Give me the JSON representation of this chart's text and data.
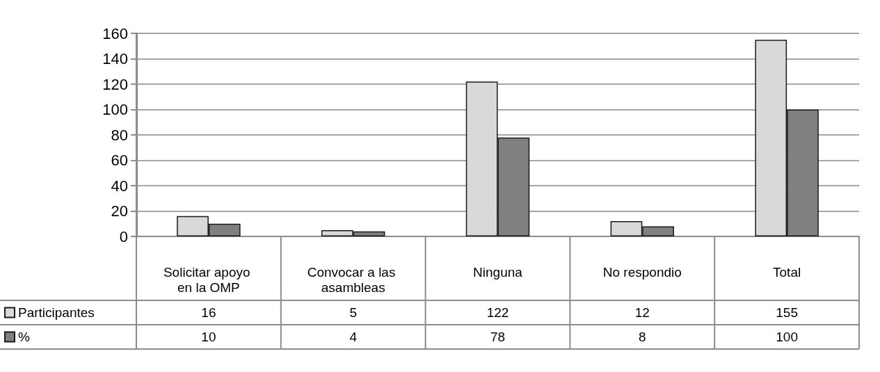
{
  "chart_data": {
    "type": "bar",
    "categories": [
      "Solicitar apoyo en la OMP",
      "Convocar a las asambleas",
      "Ninguna",
      "No respondio",
      "Total"
    ],
    "series": [
      {
        "name": "Participantes",
        "color": "#d9d9d9",
        "values": [
          16,
          5,
          122,
          12,
          155
        ]
      },
      {
        "name": "%",
        "color": "#808080",
        "values": [
          10,
          4,
          78,
          8,
          100
        ]
      }
    ],
    "ylim": [
      0,
      160
    ],
    "yticks": [
      0,
      20,
      40,
      60,
      80,
      100,
      120,
      140,
      160
    ],
    "grid": "y",
    "legend": "bottom left",
    "data_labels": true
  }
}
